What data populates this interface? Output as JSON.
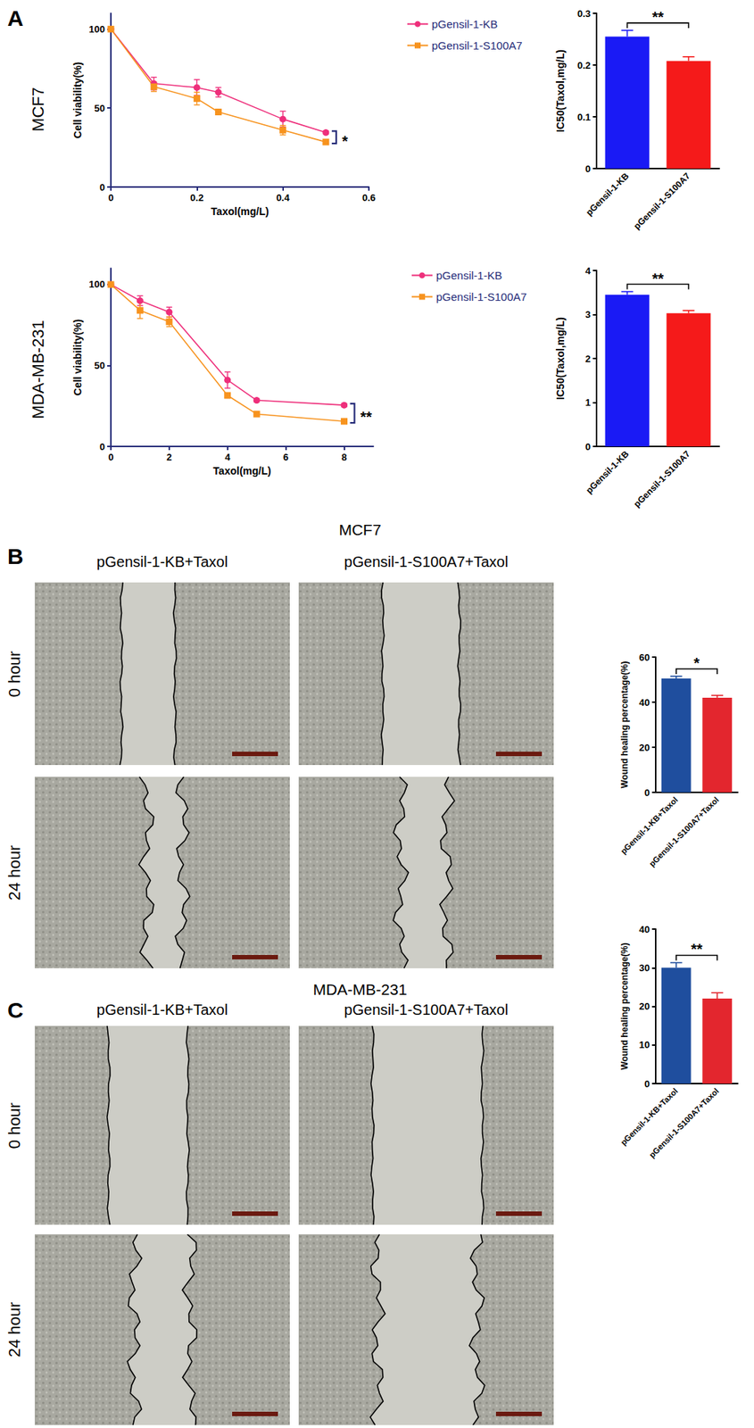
{
  "panels": [
    {
      "label": "A",
      "rows": [
        "MCF7",
        "MDA-MB-231"
      ]
    },
    {
      "label": "B",
      "title": "MCF7",
      "columns": [
        "pGensil-1-KB+Taxol",
        "pGensil-1-S100A7+Taxol"
      ],
      "rows": [
        "0 hour",
        "24 hour"
      ]
    },
    {
      "label": "C",
      "title": "MDA-MB-231",
      "columns": [
        "pGensil-1-KB+Taxol",
        "pGensil-1-S100A7+Taxol"
      ],
      "rows": [
        "0 hour",
        "24 hour"
      ]
    }
  ],
  "chart_data": [
    {
      "type": "line",
      "x_label": "Taxol(mg/L)",
      "y_label": "Cell viability(%)",
      "x": [
        0,
        0.1,
        0.2,
        0.25,
        0.4,
        0.5
      ],
      "series": [
        {
          "name": "pGensil-1-KB",
          "color": "#ee2f7b",
          "marker": "circle",
          "values": [
            100,
            65.5,
            63,
            60,
            43,
            34.5
          ],
          "errors": [
            0,
            4,
            5,
            3,
            5,
            1
          ]
        },
        {
          "name": "pGensil-1-S100A7",
          "color": "#f7931e",
          "marker": "square",
          "values": [
            100,
            63.5,
            56,
            47.5,
            36,
            28.5
          ],
          "errors": [
            0,
            3,
            4,
            1,
            3,
            1
          ]
        }
      ],
      "xlim": [
        0,
        0.6
      ],
      "xticks": [
        0,
        0.2,
        0.4,
        0.6
      ],
      "ylim": [
        0,
        110
      ],
      "yticks": [
        0,
        50,
        100
      ],
      "legend": "right",
      "annotation": "*"
    },
    {
      "type": "line",
      "x_label": "Taxol(mg/L)",
      "y_label": "Cell viability(%)",
      "x": [
        0,
        1,
        2,
        4,
        5,
        8
      ],
      "series": [
        {
          "name": "pGensil-1-KB",
          "color": "#ee2f7b",
          "marker": "circle",
          "values": [
            100,
            90,
            83,
            41,
            28.5,
            25.5
          ],
          "errors": [
            0,
            3,
            3,
            5,
            1,
            1
          ]
        },
        {
          "name": "pGensil-1-S100A7",
          "color": "#f7931e",
          "marker": "square",
          "values": [
            100,
            84,
            77,
            31.5,
            20,
            15.5
          ],
          "errors": [
            0,
            5,
            3,
            1,
            1,
            1
          ]
        }
      ],
      "xlim": [
        0,
        9
      ],
      "xticks": [
        0,
        2,
        4,
        6,
        8
      ],
      "ylim": [
        0,
        110
      ],
      "yticks": [
        0,
        50,
        100
      ],
      "legend": "right",
      "annotation": "**"
    },
    {
      "type": "bar",
      "y_label": "IC50(Taxol,mg/L)",
      "categories": [
        "pGensil-1-KB",
        "pGensil-1-S100A7"
      ],
      "values": [
        0.255,
        0.208
      ],
      "errors": [
        0.012,
        0.008
      ],
      "colors": [
        "#1a1af5",
        "#f51a1a"
      ],
      "ylim": [
        0,
        0.3
      ],
      "yticks": [
        0,
        0.1,
        0.2,
        0.3
      ],
      "annotation": "**"
    },
    {
      "type": "bar",
      "y_label": "IC50(Taxol,mg/L)",
      "categories": [
        "pGensil-1-KB",
        "pGensil-1-S100A7"
      ],
      "values": [
        3.45,
        3.03
      ],
      "errors": [
        0.07,
        0.06
      ],
      "colors": [
        "#1a1af5",
        "#f51a1a"
      ],
      "ylim": [
        0,
        4
      ],
      "yticks": [
        0,
        1,
        2,
        3,
        4
      ],
      "annotation": "**"
    },
    {
      "type": "bar",
      "y_label": "Wound healing percentage(%)",
      "categories": [
        "pGensil-1-KB+Taxol",
        "pGensil-1-S100A7+Taxol"
      ],
      "values": [
        50.5,
        42
      ],
      "errors": [
        1,
        1
      ],
      "colors": [
        "#1f4e9e",
        "#e3262e"
      ],
      "ylim": [
        0,
        60
      ],
      "yticks": [
        0,
        20,
        40,
        60
      ],
      "annotation": "*"
    },
    {
      "type": "bar",
      "y_label": "Wound healing percentage(%)",
      "categories": [
        "pGensil-1-KB+Taxol",
        "pGensil-1-S100A7+Taxol"
      ],
      "values": [
        30,
        22
      ],
      "errors": [
        1.3,
        1.5
      ],
      "colors": [
        "#1f4e9e",
        "#e3262e"
      ],
      "ylim": [
        0,
        40
      ],
      "yticks": [
        0,
        10,
        20,
        30,
        40
      ],
      "annotation": "**"
    }
  ]
}
